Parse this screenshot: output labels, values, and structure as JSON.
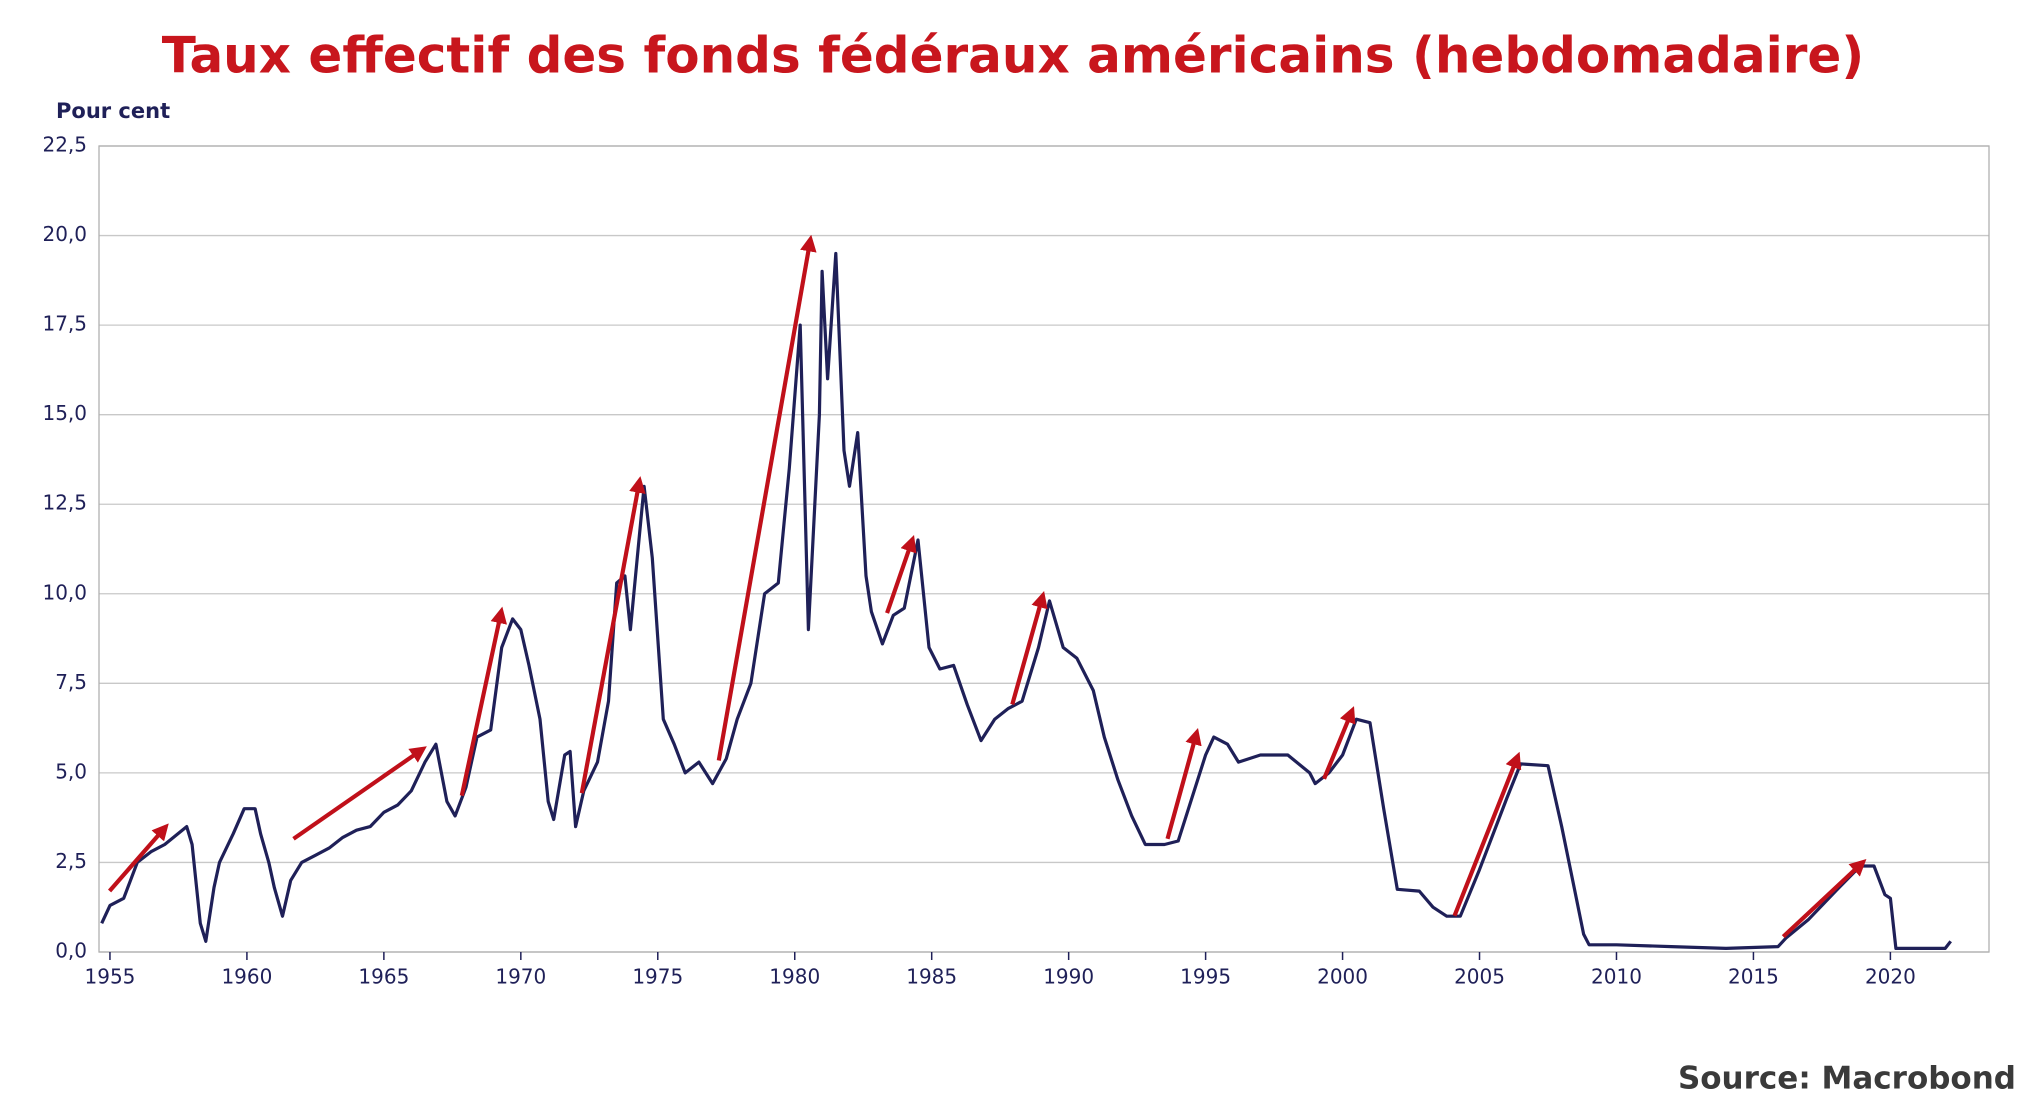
{
  "chart_data": {
    "type": "line",
    "title": "Taux effectif des fonds fédéraux américains (hebdomadaire)",
    "y_axis_label": "Pour cent",
    "source": "Source: Macrobond",
    "color": "#1f2058",
    "grid": true,
    "xlim": [
      1954.6,
      2023.6
    ],
    "ylim": [
      0,
      22.5
    ],
    "xticks": [
      1955,
      1960,
      1965,
      1970,
      1975,
      1980,
      1985,
      1990,
      1995,
      2000,
      2005,
      2010,
      2015,
      2020
    ],
    "yticks": [
      {
        "value": 0,
        "label": "0,0"
      },
      {
        "value": 2.5,
        "label": "2,5"
      },
      {
        "value": 5,
        "label": "5,0"
      },
      {
        "value": 7.5,
        "label": "7,5"
      },
      {
        "value": 10,
        "label": "10,0"
      },
      {
        "value": 12.5,
        "label": "12,5"
      },
      {
        "value": 15,
        "label": "15,0"
      },
      {
        "value": 17.5,
        "label": "17,5"
      },
      {
        "value": 20,
        "label": "20,0"
      },
      {
        "value": 22.5,
        "label": "22,5"
      }
    ],
    "x": [
      1954.7,
      1955.0,
      1955.5,
      1956.0,
      1956.5,
      1957.0,
      1957.8,
      1958.0,
      1958.3,
      1958.5,
      1958.8,
      1959.0,
      1959.5,
      1959.9,
      1960.3,
      1960.5,
      1960.8,
      1961.0,
      1961.3,
      1961.6,
      1962.0,
      1962.5,
      1963.0,
      1963.5,
      1964.0,
      1964.5,
      1965.0,
      1965.5,
      1966.0,
      1966.5,
      1966.9,
      1967.3,
      1967.6,
      1968.0,
      1968.4,
      1968.9,
      1969.3,
      1969.7,
      1970.0,
      1970.3,
      1970.7,
      1971.0,
      1971.2,
      1971.6,
      1971.8,
      1972.0,
      1972.3,
      1972.8,
      1973.2,
      1973.5,
      1973.8,
      1974.0,
      1974.5,
      1974.8,
      1975.2,
      1975.6,
      1976.0,
      1976.5,
      1977.0,
      1977.5,
      1977.9,
      1978.4,
      1978.9,
      1979.4,
      1979.8,
      1980.2,
      1980.5,
      1980.9,
      1981.0,
      1981.2,
      1981.5,
      1981.8,
      1982.0,
      1982.3,
      1982.6,
      1982.8,
      1983.2,
      1983.6,
      1984.0,
      1984.5,
      1984.9,
      1985.3,
      1985.8,
      1986.3,
      1986.8,
      1987.3,
      1987.8,
      1988.3,
      1988.9,
      1989.3,
      1989.8,
      1990.3,
      1990.9,
      1991.3,
      1991.8,
      1992.3,
      1992.8,
      1993.5,
      1994.0,
      1994.5,
      1995.0,
      1995.3,
      1995.8,
      1996.2,
      1997.0,
      1998.0,
      1998.8,
      1999.0,
      1999.5,
      2000.0,
      2000.5,
      2001.0,
      2001.5,
      2002.0,
      2002.8,
      2003.3,
      2003.8,
      2004.3,
      2005.0,
      2006.0,
      2006.5,
      2007.5,
      2008.0,
      2008.4,
      2008.8,
      2009.0,
      2010.0,
      2012.0,
      2014.0,
      2015.9,
      2016.2,
      2017.0,
      2018.0,
      2018.9,
      2019.4,
      2019.8,
      2020.0,
      2020.2,
      2022.0,
      2022.2
    ],
    "values": [
      0.8,
      1.3,
      1.5,
      2.5,
      2.8,
      3.0,
      3.5,
      3.0,
      0.8,
      0.3,
      1.8,
      2.5,
      3.3,
      4.0,
      4.0,
      3.3,
      2.5,
      1.8,
      1.0,
      2.0,
      2.5,
      2.7,
      2.9,
      3.2,
      3.4,
      3.5,
      3.9,
      4.1,
      4.5,
      5.3,
      5.8,
      4.2,
      3.8,
      4.6,
      6.0,
      6.2,
      8.5,
      9.3,
      9.0,
      8.0,
      6.5,
      4.2,
      3.7,
      5.5,
      5.6,
      3.5,
      4.5,
      5.3,
      7.0,
      10.3,
      10.5,
      9.0,
      13.0,
      11.0,
      6.5,
      5.8,
      5.0,
      5.3,
      4.7,
      5.4,
      6.5,
      7.5,
      10.0,
      10.3,
      13.5,
      17.5,
      9.0,
      15.0,
      19.0,
      16.0,
      19.5,
      14.0,
      13.0,
      14.5,
      10.5,
      9.5,
      8.6,
      9.4,
      9.6,
      11.5,
      8.5,
      7.9,
      8.0,
      6.9,
      5.9,
      6.5,
      6.8,
      7.0,
      8.5,
      9.8,
      8.5,
      8.2,
      7.3,
      6.0,
      4.8,
      3.8,
      3.0,
      3.0,
      3.1,
      4.3,
      5.5,
      6.0,
      5.8,
      5.3,
      5.5,
      5.5,
      5.0,
      4.7,
      5.0,
      5.5,
      6.5,
      6.4,
      4.0,
      1.75,
      1.7,
      1.25,
      1.0,
      1.0,
      2.3,
      4.3,
      5.25,
      5.2,
      3.5,
      2.0,
      0.5,
      0.2,
      0.2,
      0.15,
      0.1,
      0.15,
      0.4,
      0.9,
      1.7,
      2.4,
      2.4,
      1.6,
      1.5,
      0.1,
      0.1,
      0.3
    ]
  }
}
